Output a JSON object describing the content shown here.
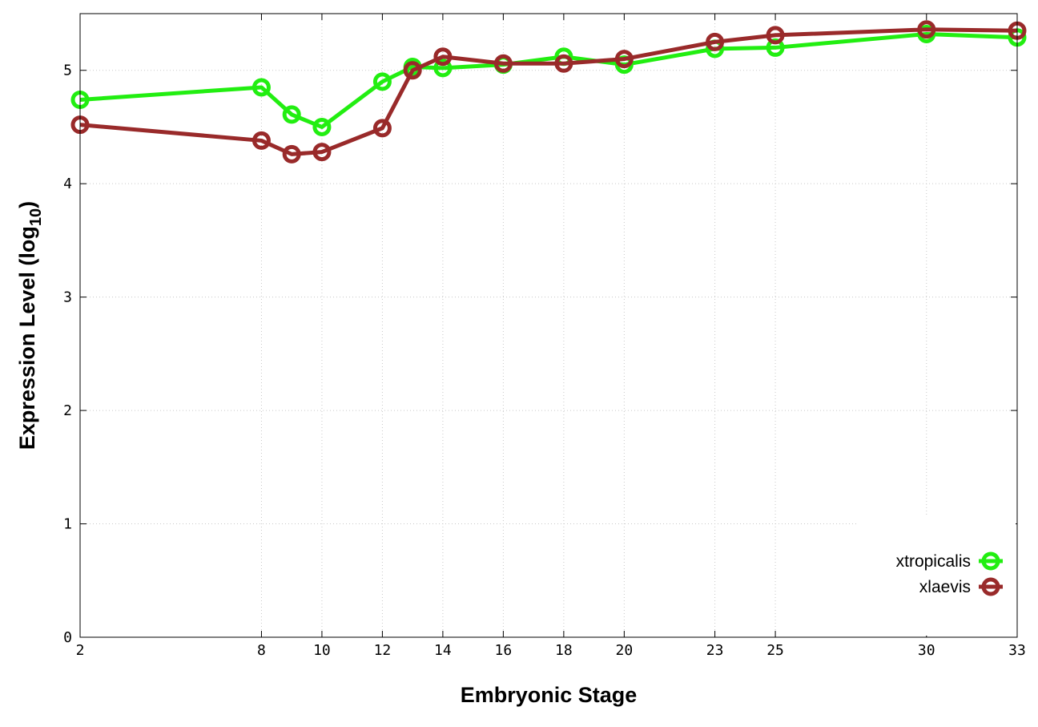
{
  "chart_data": {
    "type": "line",
    "xlabel": "Embryonic Stage",
    "ylabel": "Expression Level (log",
    "ylabel_sub": "10",
    "ylabel_close": ")",
    "xlim": [
      2,
      33
    ],
    "ylim": [
      0,
      5.5
    ],
    "x_ticks": [
      2,
      8,
      10,
      12,
      14,
      16,
      18,
      20,
      23,
      25,
      30,
      33
    ],
    "y_ticks": [
      0,
      1,
      2,
      3,
      4,
      5
    ],
    "grid": true,
    "legend_position": "bottom-right",
    "x": [
      2,
      8,
      9,
      10,
      12,
      13,
      14,
      16,
      18,
      20,
      23,
      25,
      30,
      33
    ],
    "series": [
      {
        "name": "xtropicalis",
        "color": "#22ee11",
        "values": [
          4.74,
          4.85,
          4.61,
          4.5,
          4.9,
          5.03,
          5.02,
          5.05,
          5.12,
          5.05,
          5.19,
          5.2,
          5.32,
          5.29
        ]
      },
      {
        "name": "xlaevis",
        "color": "#992a2a",
        "values": [
          4.52,
          4.38,
          4.26,
          4.28,
          4.49,
          5.0,
          5.12,
          5.06,
          5.06,
          5.1,
          5.25,
          5.31,
          5.36,
          5.35
        ]
      }
    ]
  }
}
